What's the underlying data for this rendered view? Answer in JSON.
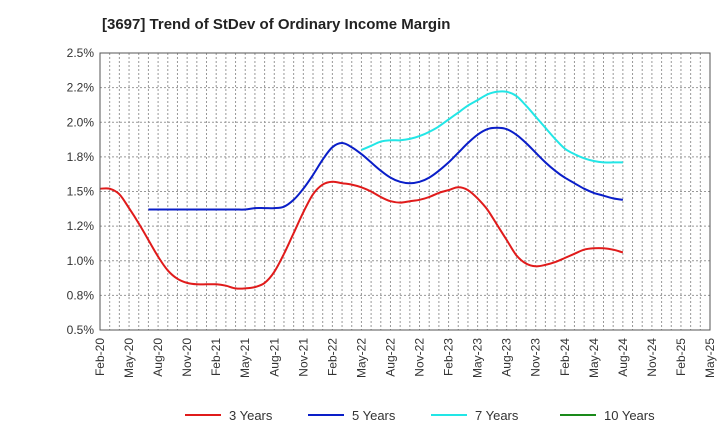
{
  "title": "[3697]  Trend of StDev of Ordinary Income Margin",
  "chart_data": {
    "type": "line",
    "title": "[3697]  Trend of StDev of Ordinary Income Margin",
    "xlabel": "",
    "ylabel": "",
    "ylim": [
      0.5,
      2.5
    ],
    "y_ticks": [
      "0.5%",
      "0.8%",
      "1.0%",
      "1.2%",
      "1.5%",
      "1.8%",
      "2.0%",
      "2.2%",
      "2.5%"
    ],
    "x_ticks": [
      "Feb-20",
      "May-20",
      "Aug-20",
      "Nov-20",
      "Feb-21",
      "May-21",
      "Aug-21",
      "Nov-21",
      "Feb-22",
      "May-22",
      "Aug-22",
      "Nov-22",
      "Feb-23",
      "May-23",
      "Aug-23",
      "Nov-23",
      "Feb-24",
      "May-24",
      "Aug-24",
      "Nov-24",
      "Feb-25",
      "May-25"
    ],
    "grid": true,
    "legend_position": "bottom",
    "series": [
      {
        "name": "3 Years",
        "color": "#e01b1b",
        "values": [
          1.52,
          1.52,
          1.48,
          1.38,
          1.27,
          1.15,
          1.03,
          0.93,
          0.87,
          0.84,
          0.83,
          0.83,
          0.83,
          0.82,
          0.8,
          0.8,
          0.81,
          0.84,
          0.92,
          1.05,
          1.2,
          1.35,
          1.48,
          1.55,
          1.57,
          1.56,
          1.55,
          1.53,
          1.5,
          1.46,
          1.43,
          1.42,
          1.43,
          1.44,
          1.46,
          1.49,
          1.51,
          1.53,
          1.51,
          1.45,
          1.37,
          1.26,
          1.15,
          1.04,
          0.98,
          0.96,
          0.97,
          0.99,
          1.02,
          1.05,
          1.08,
          1.09,
          1.09,
          1.08,
          1.06
        ]
      },
      {
        "name": "5 Years",
        "color": "#0a1ec8",
        "values": [
          null,
          null,
          null,
          null,
          null,
          1.37,
          1.37,
          1.37,
          1.37,
          1.37,
          1.37,
          1.37,
          1.37,
          1.37,
          1.37,
          1.37,
          1.38,
          1.38,
          1.38,
          1.39,
          1.44,
          1.52,
          1.62,
          1.73,
          1.82,
          1.85,
          1.82,
          1.77,
          1.71,
          1.65,
          1.6,
          1.57,
          1.56,
          1.57,
          1.6,
          1.65,
          1.71,
          1.78,
          1.85,
          1.91,
          1.95,
          1.96,
          1.95,
          1.91,
          1.85,
          1.78,
          1.71,
          1.65,
          1.6,
          1.56,
          1.52,
          1.49,
          1.47,
          1.45,
          1.44
        ]
      },
      {
        "name": "7 Years",
        "color": "#22e6e6",
        "values": [
          null,
          null,
          null,
          null,
          null,
          null,
          null,
          null,
          null,
          null,
          null,
          null,
          null,
          null,
          null,
          null,
          null,
          null,
          null,
          null,
          null,
          null,
          null,
          null,
          null,
          null,
          null,
          1.8,
          1.83,
          1.86,
          1.87,
          1.87,
          1.88,
          1.9,
          1.93,
          1.97,
          2.02,
          2.07,
          2.12,
          2.16,
          2.2,
          2.22,
          2.22,
          2.19,
          2.12,
          2.04,
          1.96,
          1.88,
          1.81,
          1.77,
          1.74,
          1.72,
          1.71,
          1.71,
          1.71
        ]
      },
      {
        "name": "10 Years",
        "color": "#1a8a1a",
        "values": []
      }
    ]
  }
}
